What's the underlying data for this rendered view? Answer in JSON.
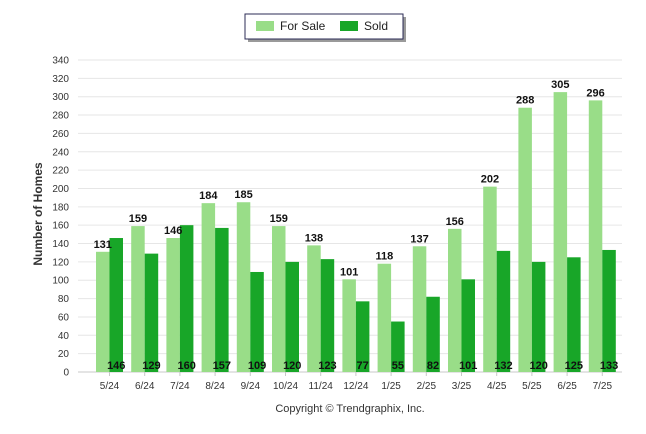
{
  "chart_data": {
    "type": "bar",
    "title": "",
    "xlabel": "",
    "ylabel": "Number of Homes",
    "ylim": [
      0,
      340
    ],
    "ytick_step": 20,
    "grid": true,
    "legend_position": "top-center",
    "categories": [
      "5/24",
      "6/24",
      "7/24",
      "8/24",
      "9/24",
      "10/24",
      "11/24",
      "12/24",
      "1/25",
      "2/25",
      "3/25",
      "4/25",
      "5/25",
      "6/25",
      "7/25"
    ],
    "series": [
      {
        "name": "For Sale",
        "color": "#99dd88",
        "values": [
          131,
          159,
          146,
          184,
          185,
          159,
          138,
          101,
          118,
          137,
          156,
          202,
          288,
          305,
          296
        ],
        "label_position": "above"
      },
      {
        "name": "Sold",
        "color": "#18a628",
        "values": [
          146,
          129,
          160,
          157,
          109,
          120,
          123,
          77,
          55,
          82,
          101,
          132,
          120,
          125,
          133
        ],
        "label_position": "base"
      }
    ]
  },
  "footer": {
    "copyright": "Copyright © Trendgraphix, Inc."
  }
}
